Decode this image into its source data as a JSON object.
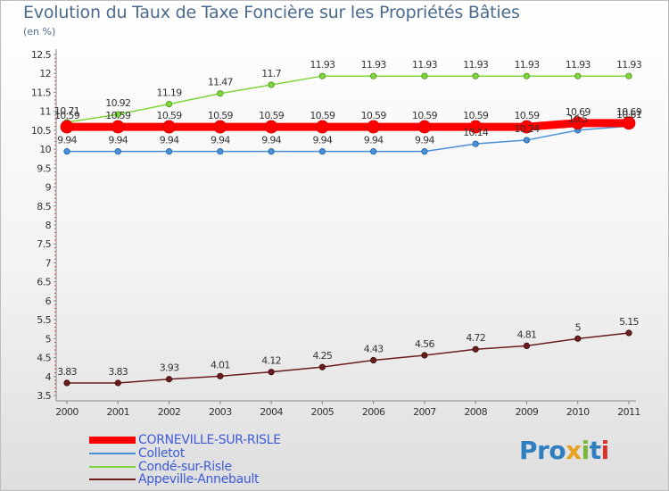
{
  "chart_data": {
    "type": "line",
    "title": "Evolution du Taux de Taxe Foncière sur les Propriétés Bâties",
    "unit_label": "(en %)",
    "x": [
      "2000",
      "2001",
      "2002",
      "2003",
      "2004",
      "2005",
      "2006",
      "2007",
      "2008",
      "2009",
      "2010",
      "2011"
    ],
    "ylim": [
      3.5,
      12.5
    ],
    "yticks": [
      "3.5",
      "4",
      "4.5",
      "5",
      "5.5",
      "6",
      "6.5",
      "7",
      "7.5",
      "8",
      "8.5",
      "9",
      "9.5",
      "10",
      "10.5",
      "11",
      "11.5",
      "12",
      "12.5"
    ],
    "grid": false,
    "legend_position": "bottom-left",
    "series": [
      {
        "name": "CORNEVILLE-SUR-RISLE",
        "color": "#ff0000",
        "values": [
          10.59,
          10.59,
          10.59,
          10.59,
          10.59,
          10.59,
          10.59,
          10.59,
          10.59,
          10.59,
          10.69,
          10.69
        ],
        "labels": [
          "10.59",
          "10.59",
          "10.59",
          "10.59",
          "10.59",
          "10.59",
          "10.59",
          "10.59",
          "10.59",
          "10.59",
          "10.69",
          "10.69"
        ]
      },
      {
        "name": "Colletot",
        "color": "#4a90d9",
        "values": [
          9.94,
          9.94,
          9.94,
          9.94,
          9.94,
          9.94,
          9.94,
          9.94,
          10.14,
          10.24,
          10.5,
          10.61
        ],
        "labels": [
          "9.94",
          "9.94",
          "9.94",
          "9.94",
          "9.94",
          "9.94",
          "9.94",
          "9.94",
          "10.14",
          "10.24",
          "10.5",
          "10.61"
        ]
      },
      {
        "name": "Condé-sur-Risle",
        "color": "#7fd63a",
        "values": [
          10.71,
          10.92,
          11.19,
          11.47,
          11.7,
          11.93,
          11.93,
          11.93,
          11.93,
          11.93,
          11.93,
          11.93
        ],
        "labels": [
          "10.71",
          "10.92",
          "11.19",
          "11.47",
          "11.7",
          "11.93",
          "11.93",
          "11.93",
          "11.93",
          "11.93",
          "11.93",
          "11.93"
        ]
      },
      {
        "name": "Appeville-Annebault",
        "color": "#6b1c1c",
        "values": [
          3.83,
          3.83,
          3.93,
          4.01,
          4.12,
          4.25,
          4.43,
          4.56,
          4.72,
          4.81,
          5,
          5.15
        ],
        "labels": [
          "3.83",
          "3.83",
          "3.93",
          "4.01",
          "4.12",
          "4.25",
          "4.43",
          "4.56",
          "4.72",
          "4.81",
          "5",
          "5.15"
        ]
      }
    ]
  },
  "logo": {
    "letters": [
      "Pro",
      "x",
      "i",
      "t",
      "i"
    ]
  }
}
